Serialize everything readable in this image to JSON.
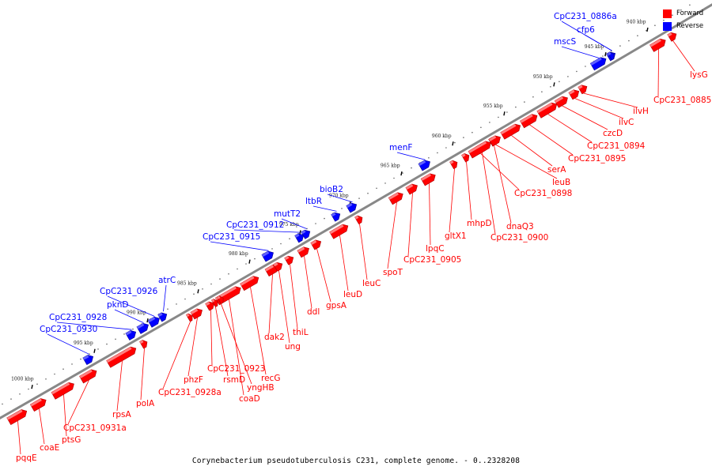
{
  "caption": "Corynebacterium pseudotuberculosis C231, complete genome. - 0..2328208",
  "legend": [
    {
      "label": "Forward",
      "color": "#ff0000"
    },
    {
      "label": "Reverse",
      "color": "#0000ff"
    }
  ],
  "colors": {
    "forward": "#ff0000",
    "reverse": "#0000ff",
    "backbone": "#888888"
  },
  "ticks": [
    "940 kbp",
    "945 kbp",
    "950 kbp",
    "955 kbp",
    "960 kbp",
    "965 kbp",
    "970 kbp",
    "975 kbp",
    "980 kbp",
    "985 kbp",
    "990 kbp",
    "995 kbp",
    "1000 kbp"
  ],
  "genes": [
    {
      "name": "pqqE",
      "strand": "forward"
    },
    {
      "name": "coaE",
      "strand": "forward"
    },
    {
      "name": "ptsG",
      "strand": "forward"
    },
    {
      "name": "CpC231_0931a",
      "strand": "forward"
    },
    {
      "name": "rpsA",
      "strand": "forward"
    },
    {
      "name": "polA",
      "strand": "forward"
    },
    {
      "name": "CpC231_0928a",
      "strand": "forward"
    },
    {
      "name": "phzF",
      "strand": "forward"
    },
    {
      "name": "CpC231_0923",
      "strand": "forward"
    },
    {
      "name": "rsmD",
      "strand": "forward"
    },
    {
      "name": "coaD",
      "strand": "forward"
    },
    {
      "name": "yngHB",
      "strand": "forward"
    },
    {
      "name": "recG",
      "strand": "forward"
    },
    {
      "name": "dak2",
      "strand": "forward"
    },
    {
      "name": "ung",
      "strand": "forward"
    },
    {
      "name": "thiL",
      "strand": "forward"
    },
    {
      "name": "ddl",
      "strand": "forward"
    },
    {
      "name": "gpsA",
      "strand": "forward"
    },
    {
      "name": "leuD",
      "strand": "forward"
    },
    {
      "name": "leuC",
      "strand": "forward"
    },
    {
      "name": "spoT",
      "strand": "forward"
    },
    {
      "name": "CpC231_0905",
      "strand": "forward"
    },
    {
      "name": "lpqC",
      "strand": "forward"
    },
    {
      "name": "gltX1",
      "strand": "forward"
    },
    {
      "name": "mhpD",
      "strand": "forward"
    },
    {
      "name": "CpC231_0900",
      "strand": "forward"
    },
    {
      "name": "dnaQ3",
      "strand": "forward"
    },
    {
      "name": "CpC231_0898",
      "strand": "forward"
    },
    {
      "name": "leuB",
      "strand": "forward"
    },
    {
      "name": "serA",
      "strand": "forward"
    },
    {
      "name": "CpC231_0895",
      "strand": "forward"
    },
    {
      "name": "CpC231_0894",
      "strand": "forward"
    },
    {
      "name": "czcD",
      "strand": "forward"
    },
    {
      "name": "ilvC",
      "strand": "forward"
    },
    {
      "name": "ilvH",
      "strand": "forward"
    },
    {
      "name": "CpC231_0885",
      "strand": "forward"
    },
    {
      "name": "lysG",
      "strand": "forward"
    },
    {
      "name": "CpC231_0930",
      "strand": "reverse"
    },
    {
      "name": "CpC231_0928",
      "strand": "reverse"
    },
    {
      "name": "pknD",
      "strand": "reverse"
    },
    {
      "name": "CpC231_0926",
      "strand": "reverse"
    },
    {
      "name": "atrC",
      "strand": "reverse"
    },
    {
      "name": "CpC231_0915",
      "strand": "reverse"
    },
    {
      "name": "CpC231_0912",
      "strand": "reverse"
    },
    {
      "name": "mutT2",
      "strand": "reverse"
    },
    {
      "name": "ltbR",
      "strand": "reverse"
    },
    {
      "name": "bioB2",
      "strand": "reverse"
    },
    {
      "name": "menF",
      "strand": "reverse"
    },
    {
      "name": "mscS",
      "strand": "reverse"
    },
    {
      "name": "cfp6",
      "strand": "reverse"
    },
    {
      "name": "CpC231_0886a",
      "strand": "reverse"
    }
  ]
}
